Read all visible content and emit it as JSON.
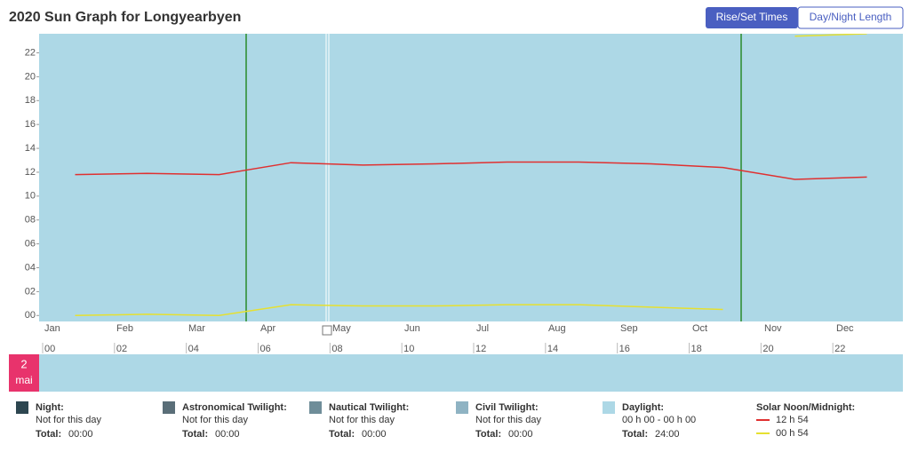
{
  "header": {
    "title": "2020 Sun Graph for Longyearbyen",
    "tabs": [
      "Rise/Set Times",
      "Day/Night Length"
    ]
  },
  "chart_data": {
    "type": "line",
    "categories": [
      "Jan",
      "Feb",
      "Mar",
      "Apr",
      "May",
      "Jun",
      "Jul",
      "Aug",
      "Sep",
      "Oct",
      "Nov",
      "Dec"
    ],
    "ylim": [
      -0.5,
      23.6
    ],
    "yticks": [
      {
        "value": 0,
        "label": "00"
      },
      {
        "value": 2,
        "label": "02"
      },
      {
        "value": 4,
        "label": "04"
      },
      {
        "value": 6,
        "label": "06"
      },
      {
        "value": 8,
        "label": "08"
      },
      {
        "value": 10,
        "label": "10"
      },
      {
        "value": 12,
        "label": "12"
      },
      {
        "value": 14,
        "label": "14"
      },
      {
        "value": 16,
        "label": "16"
      },
      {
        "value": 18,
        "label": "18"
      },
      {
        "value": 20,
        "label": "20"
      },
      {
        "value": 22,
        "label": "22"
      }
    ],
    "series": [
      {
        "name": "12 h 54",
        "color": "#e03030",
        "values": [
          11.8,
          11.9,
          11.8,
          12.8,
          12.6,
          12.7,
          12.85,
          12.85,
          12.7,
          12.4,
          11.4,
          11.6
        ]
      },
      {
        "name": "00 h 54",
        "color": "#e6e030",
        "values": [
          0.0,
          0.1,
          0.0,
          0.9,
          0.8,
          0.8,
          0.9,
          0.9,
          0.7,
          0.5,
          23.4,
          23.6
        ]
      }
    ]
  },
  "day_bar": {
    "day": "2",
    "month": "mai",
    "xlim": [
      0,
      24
    ],
    "xticks": [
      {
        "value": 0,
        "label": "00"
      },
      {
        "value": 2,
        "label": "02"
      },
      {
        "value": 4,
        "label": "04"
      },
      {
        "value": 6,
        "label": "06"
      },
      {
        "value": 8,
        "label": "08"
      },
      {
        "value": 10,
        "label": "10"
      },
      {
        "value": 12,
        "label": "12"
      },
      {
        "value": 14,
        "label": "14"
      },
      {
        "value": 16,
        "label": "16"
      },
      {
        "value": 18,
        "label": "18"
      },
      {
        "value": 20,
        "label": "20"
      },
      {
        "value": 22,
        "label": "22"
      }
    ]
  },
  "legend": {
    "items": [
      {
        "name": "Night:",
        "color": "#2d4650",
        "status": "Not for this day",
        "total_label": "Total:",
        "total": "00:00"
      },
      {
        "name": "Astronomical Twilight:",
        "color": "#5a6e78",
        "status": "Not for this day",
        "total_label": "Total:",
        "total": "00:00"
      },
      {
        "name": "Nautical Twilight:",
        "color": "#6f8d99",
        "status": "Not for this day",
        "total_label": "Total:",
        "total": "00:00"
      },
      {
        "name": "Civil Twilight:",
        "color": "#8fb3c3",
        "status": "Not for this day",
        "total_label": "Total:",
        "total": "00:00"
      },
      {
        "name": "Daylight:",
        "color": "#add8e6",
        "status": "00 h 00 - 00 h 00",
        "total_label": "Total:",
        "total": "24:00"
      }
    ],
    "solar_title": "Solar Noon/Midnight:"
  }
}
